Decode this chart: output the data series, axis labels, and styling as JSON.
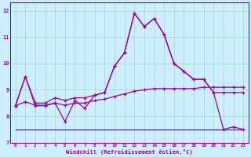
{
  "xlabel": "Windchill (Refroidissement éolien,°C)",
  "background_color": "#cceeff",
  "grid_color": "#aaddcc",
  "line_color": "#990099",
  "x_hours": [
    0,
    1,
    2,
    3,
    4,
    5,
    6,
    7,
    8,
    9,
    10,
    11,
    12,
    13,
    14,
    15,
    16,
    17,
    18,
    19,
    20,
    21,
    22,
    23
  ],
  "temp_line": [
    8.4,
    9.5,
    8.4,
    8.4,
    8.5,
    7.8,
    8.6,
    8.3,
    8.8,
    8.9,
    9.9,
    10.4,
    11.9,
    11.4,
    11.7,
    11.1,
    10.0,
    9.7,
    9.4,
    9.4,
    8.9,
    7.5,
    7.6,
    7.5
  ],
  "min_line": [
    7.5,
    7.5,
    7.5,
    7.5,
    7.5,
    7.5,
    7.5,
    7.5,
    7.5,
    7.5,
    7.5,
    7.5,
    7.5,
    7.5,
    7.5,
    7.5,
    7.5,
    7.5,
    7.5,
    7.5,
    7.5,
    7.5,
    7.5,
    7.5
  ],
  "max_line": [
    8.4,
    9.5,
    8.5,
    8.5,
    8.7,
    8.6,
    8.7,
    8.7,
    8.8,
    8.9,
    9.9,
    10.4,
    11.9,
    11.4,
    11.7,
    11.1,
    10.0,
    9.7,
    9.4,
    9.4,
    8.9,
    8.9,
    8.9,
    8.9
  ],
  "avg_line": [
    8.4,
    8.55,
    8.42,
    8.42,
    8.5,
    8.42,
    8.5,
    8.5,
    8.6,
    8.65,
    8.75,
    8.85,
    8.95,
    9.0,
    9.05,
    9.05,
    9.05,
    9.05,
    9.05,
    9.1,
    9.1,
    9.1,
    9.1,
    9.1
  ],
  "ylim": [
    7.0,
    12.3
  ],
  "yticks": [
    7,
    8,
    9,
    10,
    11,
    12
  ]
}
